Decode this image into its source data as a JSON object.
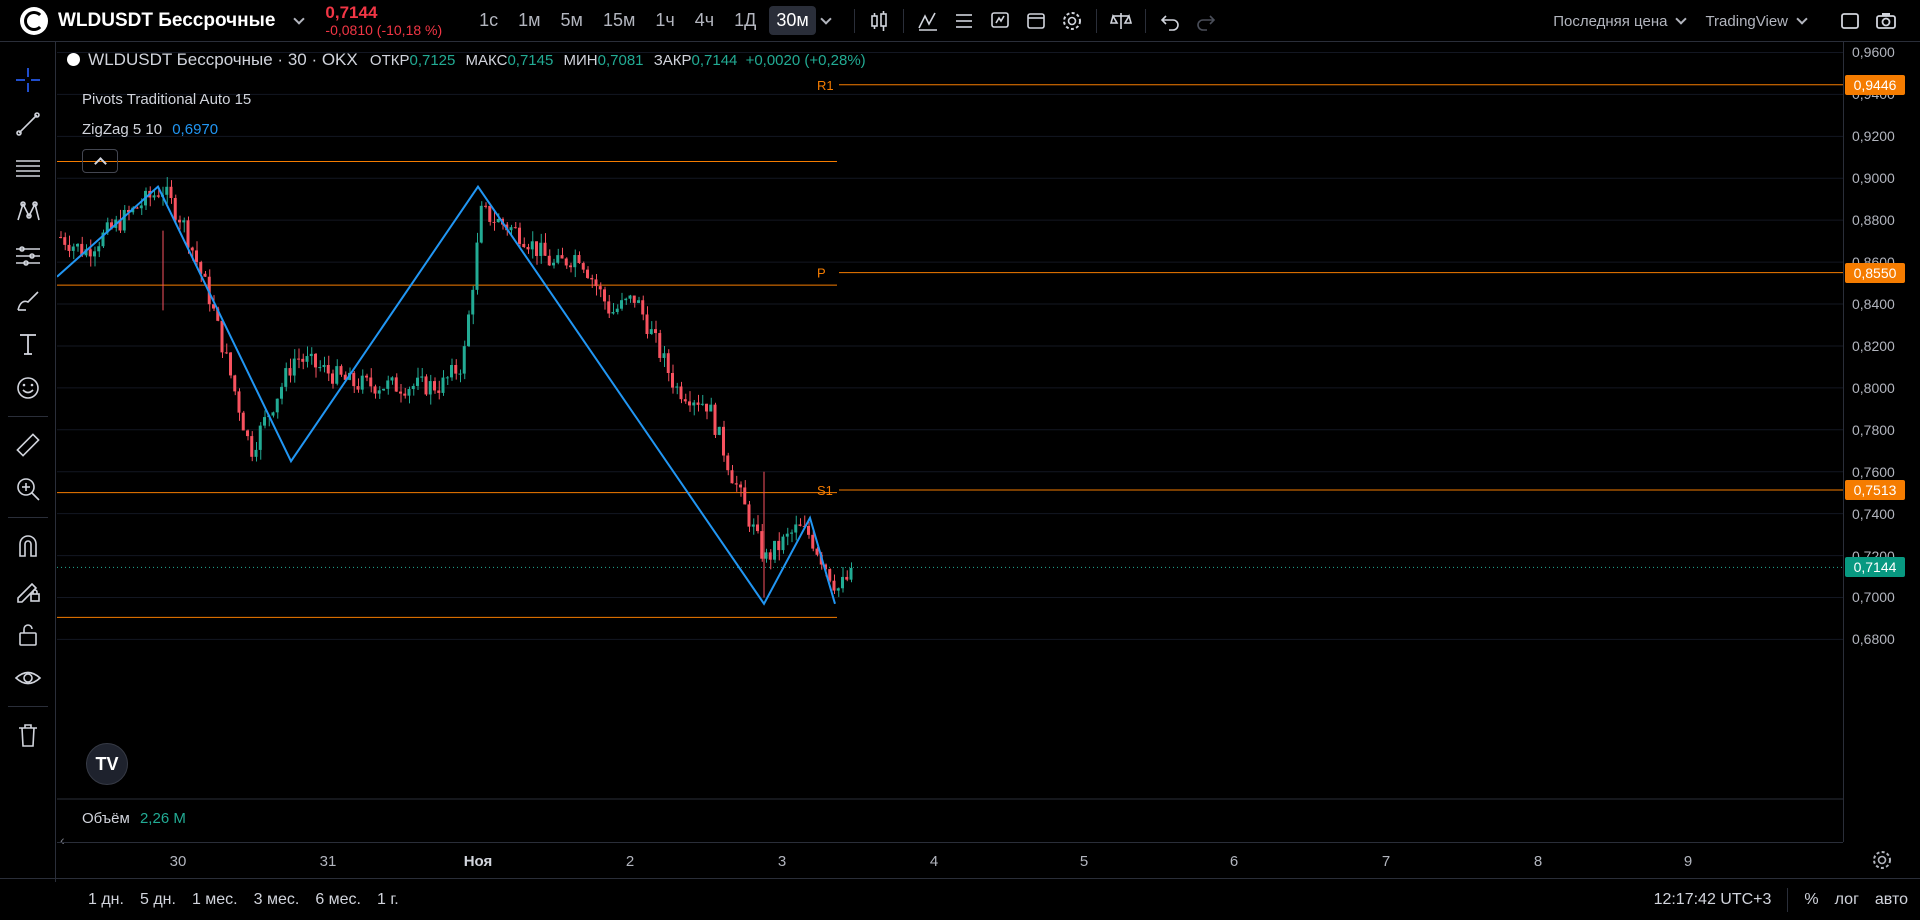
{
  "header": {
    "symbol": "WLDUSDT Бессрочные",
    "price": "0,7144",
    "change": "-0,0810 (-10,18 %)",
    "timeframes": [
      "1с",
      "1м",
      "5м",
      "15м",
      "1ч",
      "4ч",
      "1Д",
      "30м"
    ],
    "active_timeframe": "30м",
    "price_type": "Последняя цена",
    "provider": "TradingView"
  },
  "legend": {
    "title": "WLDUSDT Бессрочные · 30 · OKX",
    "open_label": "ОТКР",
    "open": "0,7125",
    "high_label": "МАКС",
    "high": "0,7145",
    "low_label": "МИН",
    "low": "0,7081",
    "close_label": "ЗАКР",
    "close": "0,7144",
    "change": "+0,0020 (+0,28%)",
    "pivots": "Pivots Traditional Auto 15",
    "zigzag_label": "ZigZag 5 10",
    "zigzag_value": "0,6970",
    "volume_label": "Объём",
    "volume_value": "2,26 M"
  },
  "pivot_labels": {
    "r1": "R1",
    "p": "P",
    "s1": "S1"
  },
  "price_scale": {
    "labels": [
      "0,9600",
      "0,9400",
      "0,9200",
      "0,9000",
      "0,8800",
      "0,8600",
      "0,8400",
      "0,8200",
      "0,8000",
      "0,7800",
      "0,7600",
      "0,7400",
      "0,7200",
      "0,7000",
      "0,6800"
    ],
    "badges": {
      "r1": "0,9446",
      "p": "0,8550",
      "s1": "0,7513",
      "last": "0,7144"
    }
  },
  "time_axis": {
    "labels": [
      "30",
      "31",
      "Ноя",
      "2",
      "3",
      "4",
      "5",
      "6",
      "7",
      "8",
      "9"
    ]
  },
  "chart_data": {
    "type": "candlestick",
    "price_range": [
      0.68,
      0.96
    ],
    "pivot_levels": {
      "r1": 0.9446,
      "p": 0.855,
      "s1": 0.7513,
      "upper_prev": 0.908,
      "p_prev": 0.849,
      "s1_prev": 0.75,
      "lower_prev": 0.6905
    },
    "last_price": 0.7144,
    "zigzag": [
      0.853,
      0.896,
      0.765,
      0.896,
      0.697,
      0.738,
      0.697
    ],
    "colors": {
      "up": "#22ab94",
      "down": "#f7525f",
      "zigzag": "#2196f3",
      "pivot": "#f57c00"
    }
  },
  "ranges": [
    "1 дн.",
    "5 дн.",
    "1 мес.",
    "3 мес.",
    "6 мес.",
    "1 г."
  ],
  "footer": {
    "clock": "12:17:42 UTC+3",
    "percent": "%",
    "log": "лог",
    "auto": "авто"
  }
}
